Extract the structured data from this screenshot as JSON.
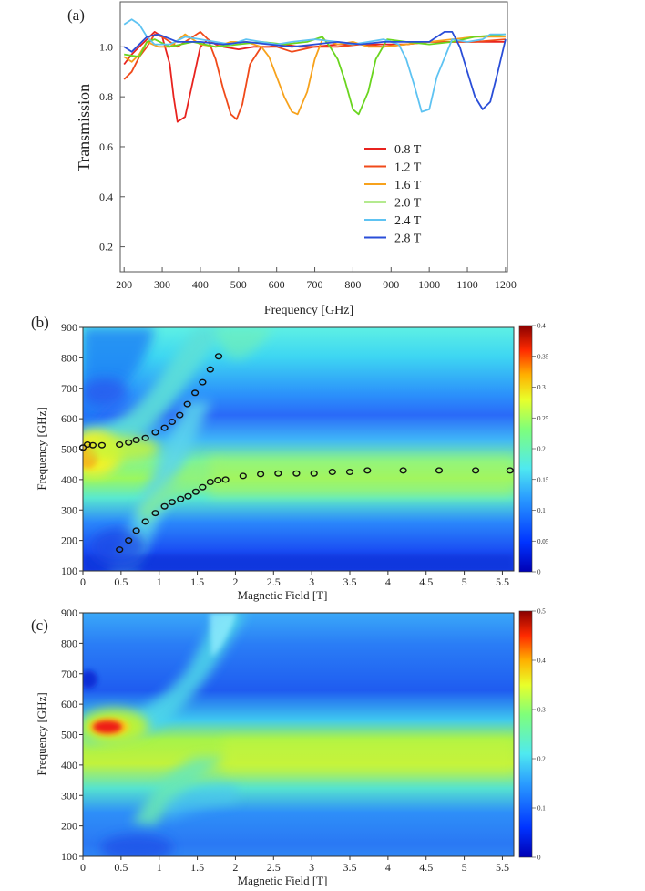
{
  "panels": {
    "a": {
      "label": "(a)"
    },
    "b": {
      "label": "(b)"
    },
    "c": {
      "label": "(c)"
    }
  },
  "colors": {
    "axis": "#555555",
    "series": [
      "#e8231f",
      "#f04a1a",
      "#f7a21c",
      "#6ad51f",
      "#5ec3f2",
      "#2a4ed8"
    ]
  },
  "chart_data": [
    {
      "id": "a",
      "type": "line",
      "title": "",
      "xlabel": "Frequency [GHz]",
      "ylabel": "Transmission",
      "xlim": [
        190,
        1205
      ],
      "ylim": [
        0.1,
        1.18
      ],
      "xticks": [
        200,
        300,
        400,
        500,
        600,
        700,
        800,
        900,
        1000,
        1100,
        1200
      ],
      "yticks": [
        0.2,
        0.4,
        0.6,
        0.8,
        1.0
      ],
      "ytick_labels": [
        "0.2",
        "0.4",
        "0.6",
        "0.8",
        "1.0"
      ],
      "legend_position": "center-right",
      "series": [
        {
          "name": "0.8 T",
          "x": [
            200,
            220,
            240,
            260,
            280,
            300,
            320,
            330,
            340,
            360,
            380,
            400,
            420,
            440,
            460,
            500,
            540,
            580,
            620,
            660,
            700,
            760,
            820,
            880,
            940,
            1000,
            1060,
            1120,
            1200
          ],
          "values": [
            0.93,
            0.97,
            1.0,
            1.03,
            1.06,
            1.04,
            0.93,
            0.8,
            0.7,
            0.72,
            0.86,
            1.0,
            1.03,
            1.01,
            1.0,
            0.99,
            1.0,
            1.0,
            1.01,
            1.0,
            1.0,
            1.01,
            1.01,
            1.01,
            1.01,
            1.02,
            1.02,
            1.02,
            1.02
          ]
        },
        {
          "name": "1.2 T",
          "x": [
            200,
            220,
            240,
            260,
            280,
            300,
            340,
            380,
            400,
            420,
            440,
            460,
            480,
            495,
            510,
            530,
            560,
            600,
            640,
            700,
            760,
            820,
            880,
            940,
            1000,
            1060,
            1120,
            1200
          ],
          "values": [
            0.87,
            0.9,
            0.96,
            1.0,
            1.05,
            1.04,
            1.0,
            1.04,
            1.06,
            1.03,
            0.95,
            0.83,
            0.73,
            0.71,
            0.77,
            0.93,
            1.0,
            1.0,
            0.98,
            1.0,
            1.0,
            1.01,
            1.0,
            1.01,
            1.02,
            1.02,
            1.02,
            1.03
          ]
        },
        {
          "name": "1.6 T",
          "x": [
            200,
            220,
            240,
            260,
            290,
            320,
            360,
            400,
            440,
            480,
            520,
            560,
            580,
            600,
            620,
            640,
            655,
            680,
            700,
            720,
            760,
            800,
            840,
            880,
            940,
            1000,
            1060,
            1120,
            1200
          ],
          "values": [
            0.96,
            0.94,
            0.97,
            1.02,
            1.0,
            1.0,
            1.05,
            1.01,
            1.0,
            1.02,
            1.02,
            1.0,
            0.96,
            0.88,
            0.8,
            0.74,
            0.73,
            0.82,
            0.95,
            1.03,
            1.01,
            1.02,
            1.0,
            1.0,
            1.01,
            1.02,
            1.03,
            1.04,
            1.04
          ]
        },
        {
          "name": "2.0 T",
          "x": [
            200,
            240,
            260,
            280,
            320,
            380,
            440,
            500,
            560,
            620,
            680,
            720,
            740,
            760,
            780,
            800,
            815,
            840,
            860,
            890,
            940,
            1000,
            1060,
            1120,
            1200
          ],
          "values": [
            0.97,
            0.96,
            1.02,
            1.03,
            1.0,
            1.02,
            1.0,
            1.01,
            1.02,
            1.01,
            1.02,
            1.04,
            1.0,
            0.95,
            0.86,
            0.75,
            0.73,
            0.82,
            0.95,
            1.03,
            1.02,
            1.01,
            1.02,
            1.04,
            1.05
          ]
        },
        {
          "name": "2.4 T",
          "x": [
            200,
            220,
            240,
            260,
            280,
            320,
            360,
            400,
            440,
            480,
            520,
            560,
            600,
            640,
            700,
            760,
            800,
            840,
            880,
            920,
            940,
            960,
            980,
            1000,
            1020,
            1060,
            1100,
            1140,
            1160,
            1200
          ],
          "values": [
            1.09,
            1.11,
            1.09,
            1.04,
            1.01,
            1.01,
            1.04,
            1.03,
            1.02,
            1.01,
            1.03,
            1.02,
            1.01,
            1.02,
            1.03,
            1.02,
            1.01,
            1.02,
            1.03,
            1.01,
            0.95,
            0.85,
            0.74,
            0.75,
            0.88,
            1.03,
            1.02,
            1.03,
            1.05,
            1.05
          ]
        },
        {
          "name": "2.8 T",
          "x": [
            200,
            220,
            240,
            260,
            290,
            340,
            400,
            460,
            520,
            580,
            640,
            700,
            760,
            820,
            880,
            940,
            1000,
            1040,
            1060,
            1080,
            1100,
            1120,
            1140,
            1160,
            1180,
            1200
          ],
          "values": [
            1.0,
            0.98,
            1.01,
            1.04,
            1.05,
            1.02,
            1.02,
            1.01,
            1.02,
            1.01,
            1.0,
            1.01,
            1.02,
            1.01,
            1.02,
            1.02,
            1.02,
            1.06,
            1.06,
            1.0,
            0.9,
            0.8,
            0.75,
            0.78,
            0.9,
            1.03
          ]
        }
      ]
    },
    {
      "id": "b",
      "type": "heatmap",
      "title": "",
      "xlabel": "Magnetic Field [T]",
      "ylabel": "Frequency [GHz]",
      "xlim": [
        0,
        5.65
      ],
      "ylim": [
        100,
        900
      ],
      "xticks": [
        0,
        0.5,
        1,
        1.5,
        2,
        2.5,
        3,
        3.5,
        4,
        4.5,
        5,
        5.5
      ],
      "yticks": [
        100,
        200,
        300,
        400,
        500,
        600,
        700,
        800,
        900
      ],
      "colorbar": {
        "min": 0,
        "max": 0.4,
        "ticks": [
          "0",
          "0.05",
          "0.1",
          "0.15",
          "0.2",
          "0.25",
          "0.3",
          "0.35",
          "0.4"
        ]
      },
      "markers": {
        "upper_branch": {
          "x": [
            0.0,
            0.06,
            0.13,
            0.25,
            0.48,
            0.6,
            0.7,
            0.82,
            0.95,
            1.07,
            1.17,
            1.27,
            1.37,
            1.47,
            1.57,
            1.67,
            1.78
          ],
          "y": [
            505,
            515,
            513,
            513,
            515,
            522,
            530,
            537,
            555,
            570,
            590,
            612,
            648,
            685,
            720,
            762,
            805
          ]
        },
        "lower_branch": {
          "x": [
            0.48,
            0.6,
            0.7,
            0.82,
            0.95,
            1.07,
            1.17,
            1.28,
            1.38,
            1.48,
            1.57,
            1.67,
            1.77,
            1.87,
            2.1,
            2.33,
            2.56,
            2.8,
            3.03,
            3.27,
            3.5,
            3.73,
            4.2,
            4.67,
            5.15,
            5.6
          ],
          "y": [
            170,
            200,
            232,
            262,
            290,
            312,
            326,
            336,
            345,
            360,
            375,
            392,
            398,
            400,
            412,
            418,
            420,
            420,
            420,
            425,
            425,
            430,
            430,
            430,
            430,
            430
          ]
        }
      }
    },
    {
      "id": "c",
      "type": "heatmap",
      "title": "",
      "xlabel": "Magnetic Field [T]",
      "ylabel": "Frequency [GHz]",
      "xlim": [
        0,
        5.65
      ],
      "ylim": [
        100,
        900
      ],
      "xticks": [
        0,
        0.5,
        1,
        1.5,
        2,
        2.5,
        3,
        3.5,
        4,
        4.5,
        5,
        5.5
      ],
      "yticks": [
        100,
        200,
        300,
        400,
        500,
        600,
        700,
        800,
        900
      ],
      "colorbar": {
        "min": 0,
        "max": 0.55,
        "ticks": [
          "0",
          "0.1",
          "0.2",
          "0.3",
          "0.4",
          "0.5"
        ]
      }
    }
  ]
}
